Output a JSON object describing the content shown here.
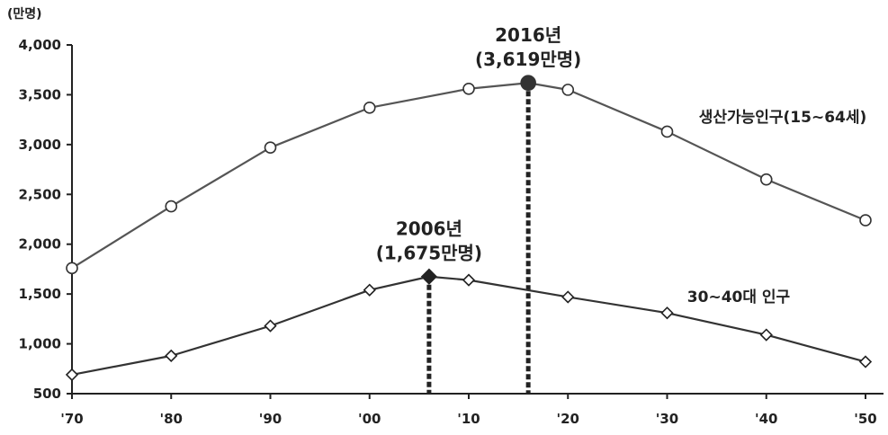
{
  "chart_data": {
    "type": "line",
    "unit_label": "(만명)",
    "categories": [
      "'70",
      "'80",
      "'90",
      "'00",
      "'10",
      "'20",
      "'30",
      "'40",
      "'50"
    ],
    "ylim": [
      500,
      4000
    ],
    "yticks": [
      "500",
      "1,000",
      "1,500",
      "2,000",
      "2,500",
      "3,000",
      "3,500",
      "4,000"
    ],
    "ytick_values": [
      500,
      1000,
      1500,
      2000,
      2500,
      3000,
      3500,
      4000
    ],
    "grid": false,
    "series": [
      {
        "name": "생산가능인구(15~64세)",
        "marker": "circle",
        "x": [
          1970,
          1980,
          1990,
          2000,
          2010,
          2016,
          2020,
          2030,
          2040,
          2050
        ],
        "values": [
          1760,
          2380,
          2970,
          3370,
          3560,
          3619,
          3550,
          3130,
          2650,
          2240
        ],
        "color": "#555555"
      },
      {
        "name": "30~40대 인구",
        "marker": "diamond",
        "x": [
          1970,
          1980,
          1990,
          2000,
          2006,
          2010,
          2020,
          2030,
          2040,
          2050
        ],
        "values": [
          690,
          880,
          1180,
          1540,
          1675,
          1640,
          1470,
          1310,
          1090,
          820
        ],
        "color": "#333333"
      }
    ],
    "annotations": [
      {
        "series": 0,
        "x": 2016,
        "value": 3619,
        "line1": "2016년",
        "line2": "(3,619만명)"
      },
      {
        "series": 1,
        "x": 2006,
        "value": 1675,
        "line1": "2006년",
        "line2": "(1,675만명)"
      }
    ]
  }
}
